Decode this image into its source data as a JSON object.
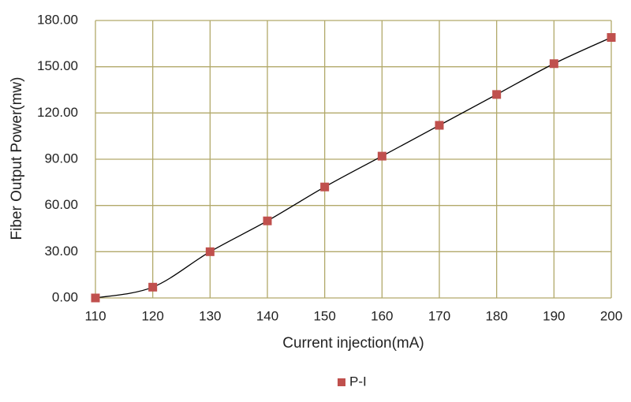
{
  "chart_data": {
    "type": "scatter",
    "x_label": "Current injection(mA)",
    "y_label": "Fiber Output Power(mw)",
    "x": [
      110,
      120,
      130,
      140,
      150,
      160,
      170,
      180,
      190,
      200
    ],
    "series": [
      {
        "name": "P-I",
        "color": "#c0504d",
        "values": [
          0,
          7,
          30,
          50,
          72,
          92,
          112,
          132,
          152,
          169
        ]
      }
    ],
    "xlim": [
      110,
      200
    ],
    "xticks": [
      110,
      120,
      130,
      140,
      150,
      160,
      170,
      180,
      190,
      200
    ],
    "ylim": [
      0,
      180
    ],
    "yticks": [
      {
        "value": 0,
        "label": "0.00"
      },
      {
        "value": 30,
        "label": "30.00"
      },
      {
        "value": 60,
        "label": "60.00"
      },
      {
        "value": 90,
        "label": "90.00"
      },
      {
        "value": 120,
        "label": "120.00"
      },
      {
        "value": 150,
        "label": "150.00"
      },
      {
        "value": 180,
        "label": "180.00"
      }
    ],
    "grid": true,
    "grid_color": "#b2a96a",
    "trendline": true,
    "trendline_color": "#000000",
    "legend": "bottom"
  }
}
